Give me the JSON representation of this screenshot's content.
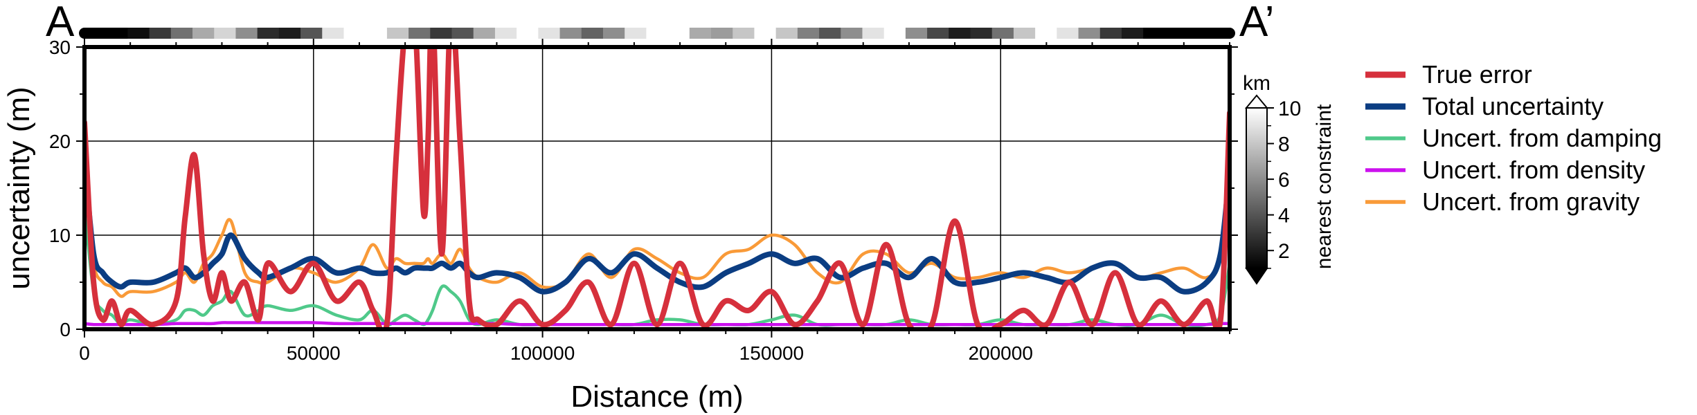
{
  "chart_data": {
    "type": "line",
    "xlabel": "Distance (m)",
    "ylabel": "uncertainty (m)",
    "xlim": [
      0,
      250000
    ],
    "ylim": [
      0,
      30
    ],
    "x_ticks": [
      0,
      50000,
      100000,
      150000,
      200000
    ],
    "x_tick_labels": [
      "0",
      "50000",
      "100000",
      "150000",
      "200000"
    ],
    "y_ticks": [
      0,
      10,
      20,
      30
    ],
    "y_tick_labels": [
      "0",
      "10",
      "20",
      "30"
    ],
    "grid": true,
    "legend_position": "right",
    "profile_start_label": "A",
    "profile_end_label": "A’",
    "colorbar": {
      "label": "nearest constraint",
      "unit": "km",
      "ticks": [
        "2",
        "4",
        "6",
        "8",
        "10"
      ],
      "range": [
        1,
        10
      ]
    },
    "constraint_strip": {
      "colormap": "grayscale",
      "values": [
        1,
        1,
        1.5,
        3,
        5,
        7,
        8.5,
        6,
        2.5,
        2,
        4,
        9,
        10,
        10,
        8,
        5,
        3,
        4,
        7,
        9,
        10,
        9,
        6,
        4.5,
        6,
        9,
        10,
        10,
        7,
        6.5,
        8,
        10,
        8,
        5.5,
        4,
        6,
        9,
        10,
        6,
        3.5,
        2,
        2.5,
        5,
        8,
        10,
        9,
        6,
        3,
        2,
        1,
        1,
        1,
        1
      ]
    },
    "x": [
      0,
      2000,
      4000,
      6000,
      8000,
      10000,
      15000,
      20000,
      22000,
      24000,
      26000,
      28000,
      30000,
      32000,
      35000,
      38000,
      40000,
      45000,
      50000,
      55000,
      60000,
      63000,
      66000,
      68000,
      70000,
      72000,
      74000,
      75000,
      76000,
      78000,
      80000,
      82000,
      84000,
      86000,
      90000,
      95000,
      100000,
      105000,
      110000,
      115000,
      120000,
      125000,
      130000,
      135000,
      140000,
      145000,
      150000,
      155000,
      160000,
      165000,
      170000,
      175000,
      180000,
      185000,
      190000,
      195000,
      200000,
      205000,
      210000,
      215000,
      220000,
      225000,
      230000,
      235000,
      240000,
      245000,
      248000,
      250000
    ],
    "series": [
      {
        "name": "True error",
        "color": "#d6303c",
        "values": [
          22,
          5,
          1,
          3,
          0.5,
          2,
          0.5,
          3,
          12,
          18.5,
          8,
          3,
          6,
          3,
          5,
          1,
          7,
          4,
          7,
          3,
          5,
          2,
          0.5,
          18,
          32,
          34,
          12.5,
          20,
          34,
          8,
          34,
          20,
          3,
          1,
          0.5,
          3,
          0.5,
          2,
          5,
          0.5,
          7,
          0.5,
          7,
          0.5,
          3,
          2,
          4,
          0.5,
          3,
          7,
          0.5,
          9,
          0.5,
          0.5,
          11.5,
          0.5,
          0.5,
          2,
          0.5,
          5,
          0.5,
          6,
          0.5,
          3,
          0.5,
          3,
          1,
          23
        ]
      },
      {
        "name": "Total uncertainty",
        "color": "#0b3d82",
        "values": [
          18,
          8,
          6,
          5,
          4.5,
          5,
          5,
          6,
          6.5,
          5.5,
          6,
          7,
          8,
          10,
          7.5,
          6,
          5.5,
          6.5,
          7.5,
          6,
          6.5,
          6,
          6,
          6.5,
          6,
          6.5,
          6.5,
          6.5,
          6.5,
          7,
          6.5,
          7,
          6,
          5.5,
          6,
          5.5,
          4,
          5,
          7.5,
          6,
          8,
          6.5,
          5,
          4.5,
          6,
          7,
          8,
          7,
          7.5,
          5.5,
          6.5,
          7,
          5.5,
          7.5,
          5,
          5,
          5.5,
          6,
          5.5,
          5,
          6.5,
          7,
          5.5,
          5.5,
          4,
          5,
          8,
          17
        ]
      },
      {
        "name": "Uncert. from damping",
        "color": "#4fc98a",
        "values": [
          13,
          4,
          2,
          1.5,
          0.5,
          1,
          0.5,
          1,
          2,
          2,
          1.5,
          2.5,
          3,
          4,
          1.5,
          2,
          2.5,
          2,
          2.5,
          1.5,
          1,
          2,
          0.5,
          1,
          1.5,
          1,
          0.5,
          1,
          2,
          4.5,
          4,
          3,
          1,
          0.5,
          1,
          0.5,
          0.5,
          0.5,
          0.5,
          0.5,
          0.5,
          1,
          1,
          0.5,
          0.5,
          0.5,
          1,
          1.5,
          0.5,
          0.5,
          0.5,
          0.5,
          1,
          0.5,
          0.5,
          0.5,
          1,
          0.5,
          0.5,
          0.5,
          1,
          0.5,
          0.5,
          1.5,
          0.5,
          0.5,
          1.5,
          7
        ]
      },
      {
        "name": "Uncert. from density",
        "color": "#cc11ee",
        "values": [
          0.6,
          0.5,
          0.5,
          0.5,
          0.5,
          0.5,
          0.5,
          0.6,
          0.6,
          0.6,
          0.6,
          0.6,
          0.7,
          0.7,
          0.7,
          0.7,
          0.7,
          0.7,
          0.7,
          0.6,
          0.6,
          0.6,
          0.6,
          0.6,
          0.6,
          0.6,
          0.6,
          0.6,
          0.6,
          0.6,
          0.6,
          0.6,
          0.6,
          0.6,
          0.6,
          0.5,
          0.5,
          0.5,
          0.5,
          0.5,
          0.5,
          0.5,
          0.5,
          0.5,
          0.5,
          0.5,
          0.5,
          0.5,
          0.5,
          0.5,
          0.5,
          0.5,
          0.5,
          0.5,
          0.5,
          0.5,
          0.5,
          0.5,
          0.5,
          0.5,
          0.5,
          0.5,
          0.5,
          0.5,
          0.5,
          0.5,
          0.6,
          0.6
        ]
      },
      {
        "name": "Uncert. from gravity",
        "color": "#f99a38",
        "values": [
          16,
          7,
          5,
          4.5,
          3.5,
          4,
          4,
          5,
          6,
          5,
          7,
          8,
          10,
          11.5,
          6,
          5,
          5,
          6.5,
          6,
          5,
          6.5,
          9,
          6.5,
          7.5,
          7,
          7,
          7,
          7.5,
          7,
          8,
          7,
          8.5,
          6.5,
          5.5,
          5,
          6,
          4.5,
          5,
          8,
          5.5,
          8.5,
          7.5,
          6,
          5.5,
          8,
          8.5,
          10,
          9,
          6,
          5,
          8,
          8,
          6,
          7,
          5.5,
          5.5,
          6,
          5.5,
          6.5,
          6,
          6.5,
          7,
          5.5,
          6,
          6.5,
          5.5,
          8,
          20
        ]
      }
    ]
  }
}
